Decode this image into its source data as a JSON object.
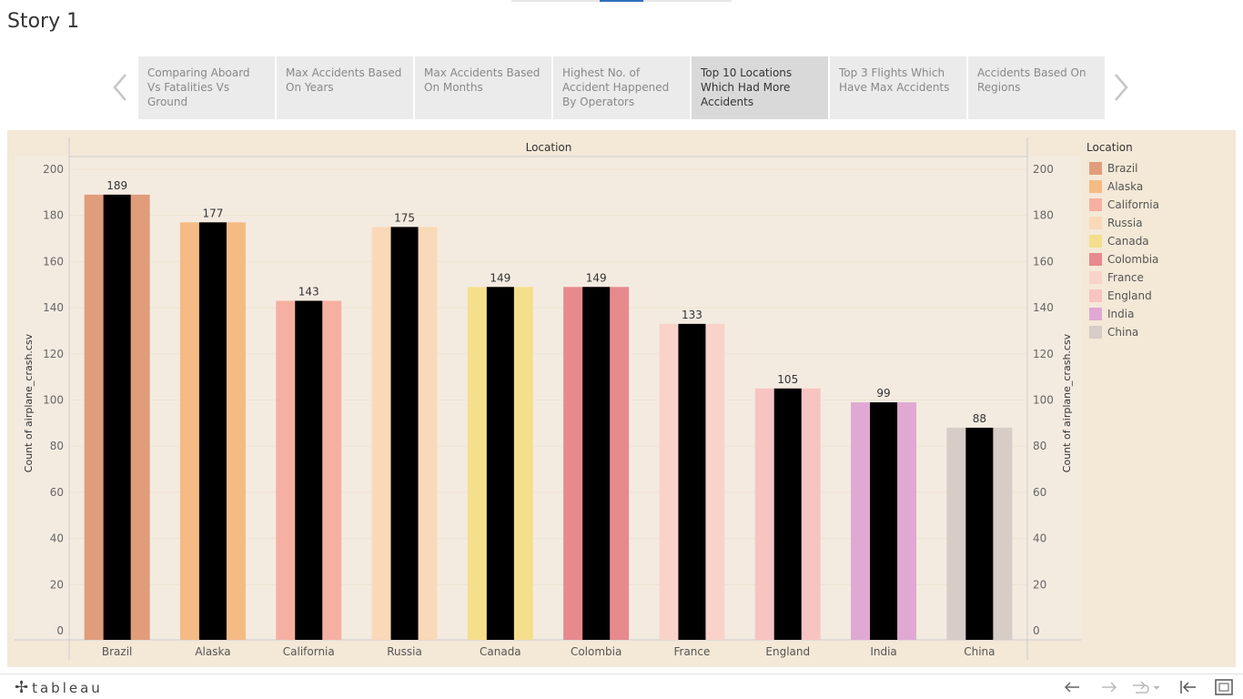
{
  "story": {
    "title": "Story 1"
  },
  "story_points": [
    {
      "label": "Comparing Aboard Vs Fatalities Vs Ground",
      "active": false
    },
    {
      "label": "Max Accidents Based On Years",
      "active": false
    },
    {
      "label": "Max Accidents Based On Months",
      "active": false
    },
    {
      "label": "Highest No. of Accident Happened  By Operators",
      "active": false
    },
    {
      "label": "Top 10 Locations Which Had More Accidents",
      "active": true
    },
    {
      "label": "Top 3 Flights Which Have Max Accidents",
      "active": false
    },
    {
      "label": "Accidents Based On Regions",
      "active": false
    }
  ],
  "legend": {
    "title": "Location"
  },
  "footer": {
    "brand": "tableau"
  },
  "chart_data": {
    "type": "bar",
    "header": "Location",
    "ylabel": "Count of airplane_crash.csv",
    "ylabel_right": "Count of airplane_crash.csv",
    "categories": [
      "Brazil",
      "Alaska",
      "California",
      "Russia",
      "Canada",
      "Colombia",
      "France",
      "England",
      "India",
      "China"
    ],
    "values": [
      189,
      177,
      143,
      175,
      149,
      149,
      133,
      105,
      99,
      88
    ],
    "colors": [
      "#e09d7b",
      "#f4bb84",
      "#f6b0a2",
      "#fad9b8",
      "#f5df8c",
      "#e68a8e",
      "#f9d3c9",
      "#f8c4c2",
      "#dfa9d3",
      "#d7ccc6"
    ],
    "overlay_color": "#000000",
    "yticks": [
      0,
      20,
      40,
      60,
      80,
      100,
      120,
      140,
      160,
      180,
      200
    ],
    "ylim": [
      0,
      200
    ],
    "grid": true,
    "legend_position": "right",
    "data_labels": true
  }
}
